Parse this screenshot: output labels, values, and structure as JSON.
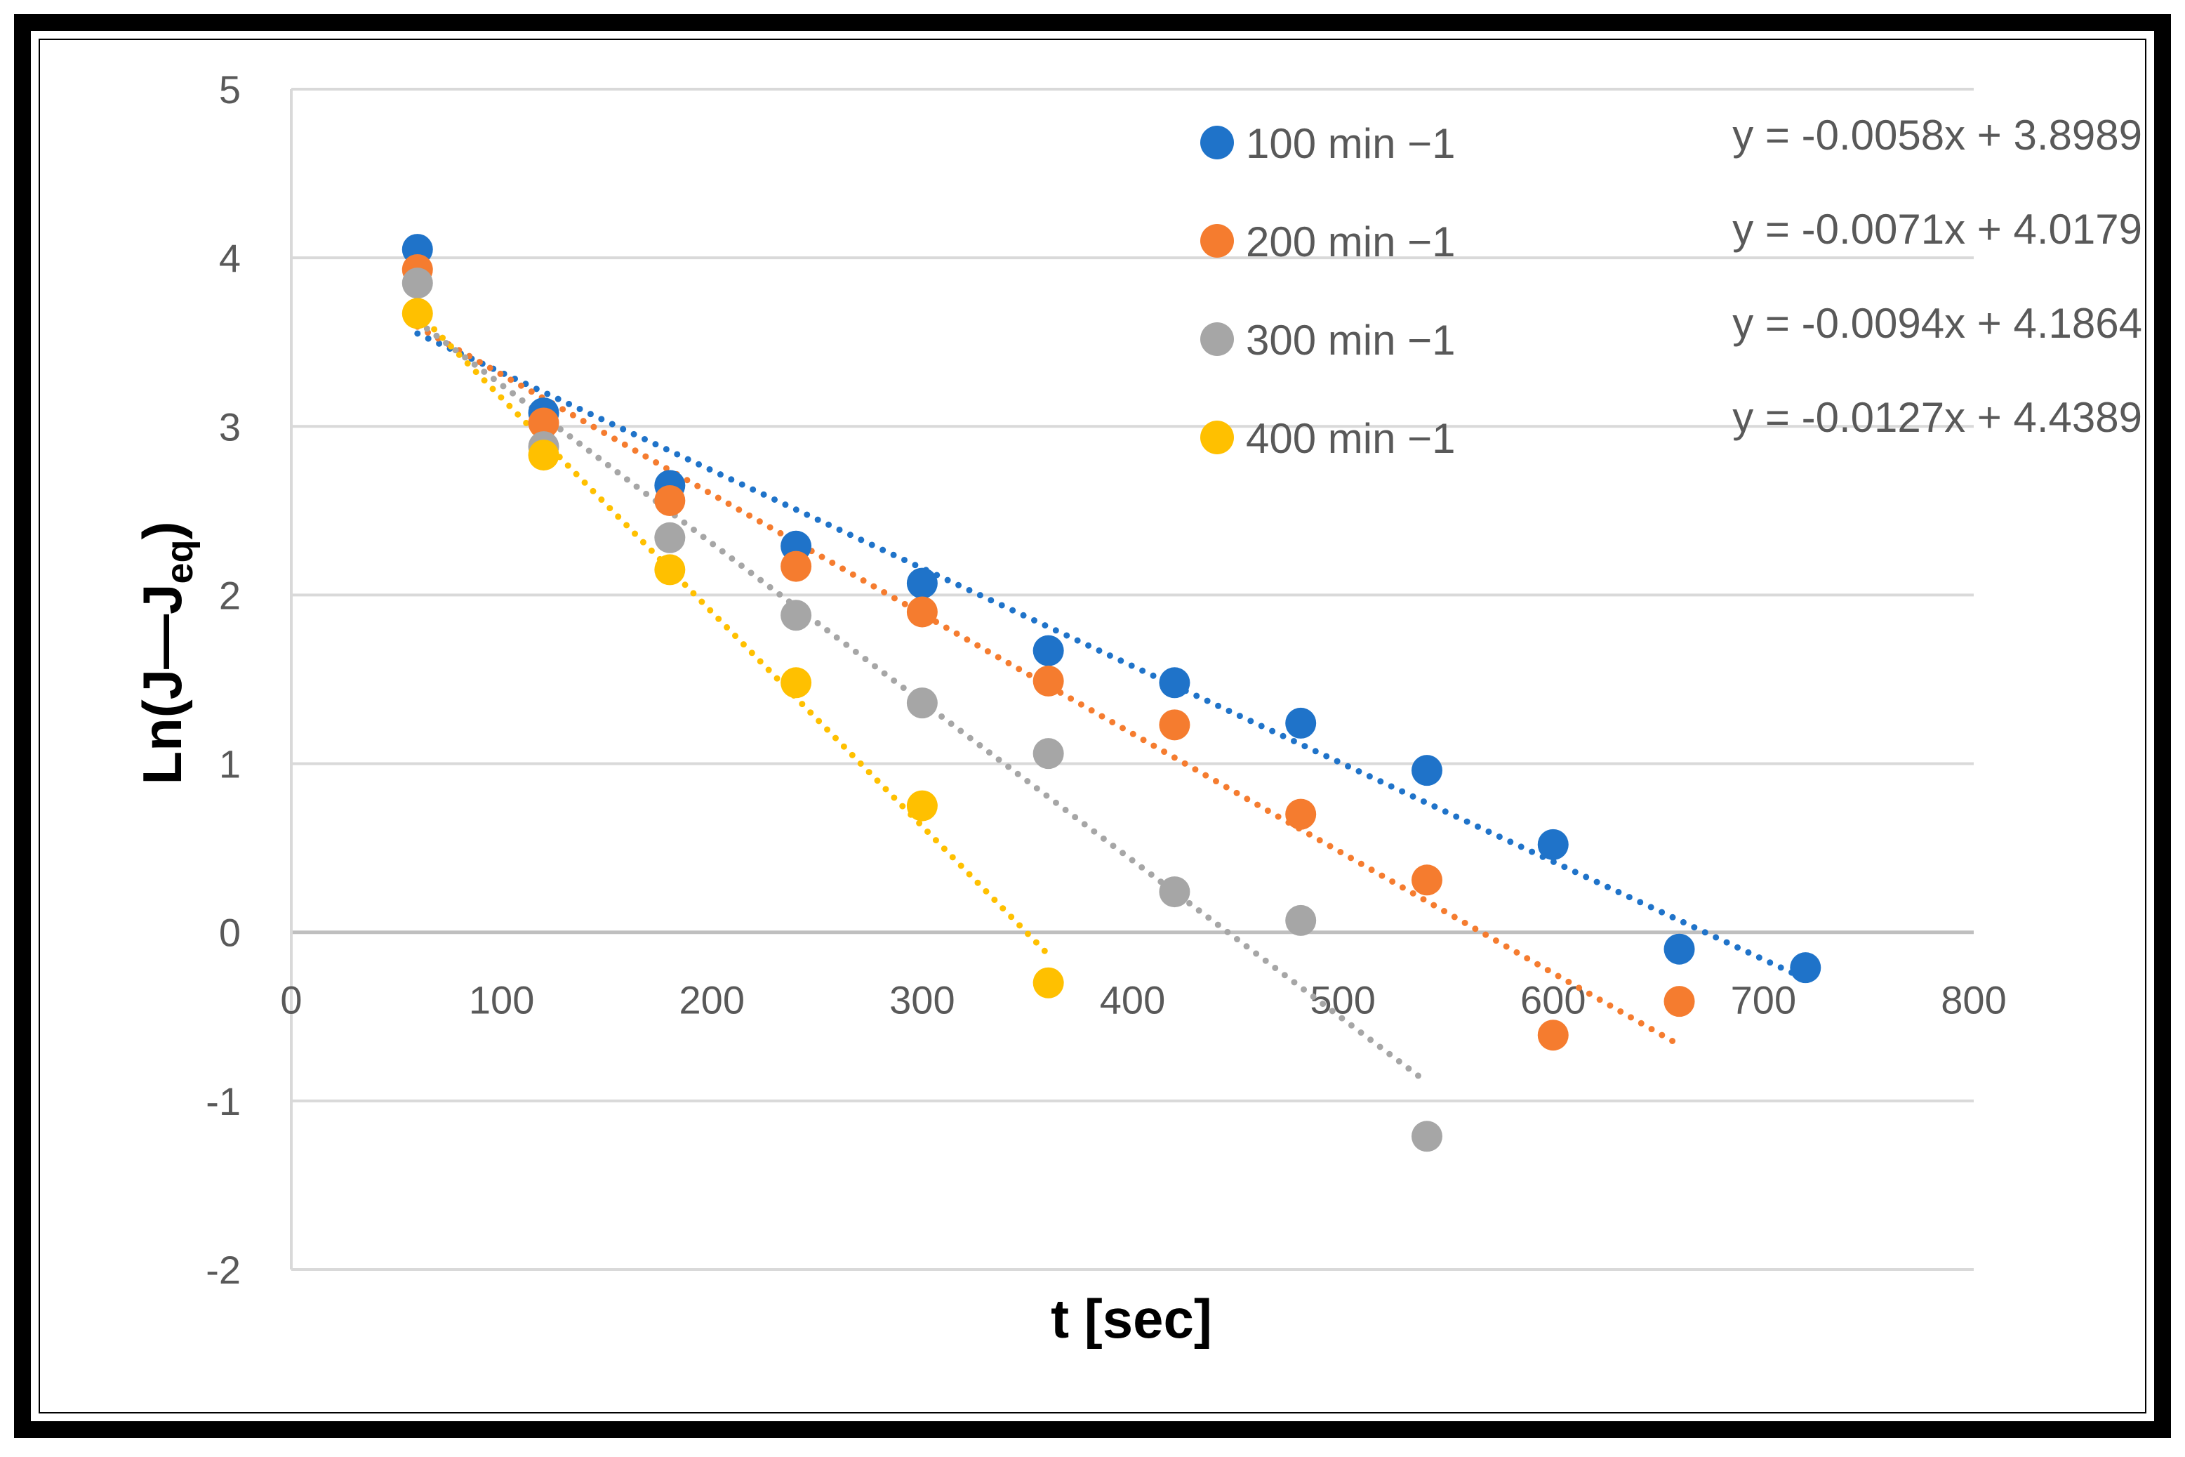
{
  "chart_data": {
    "type": "scatter",
    "title": "",
    "xlabel": "t [sec]",
    "ylabel": {
      "main": "Ln(J—J",
      "sub": "eq",
      "close": ")"
    },
    "xlim": [
      0,
      800
    ],
    "ylim": [
      -2,
      5
    ],
    "x_ticks": [
      0,
      100,
      200,
      300,
      400,
      500,
      600,
      700,
      800
    ],
    "y_ticks": [
      -2,
      -1,
      0,
      1,
      2,
      3,
      4,
      5
    ],
    "grid": "horizontal",
    "legend_position": "top-right",
    "series": [
      {
        "name": "100 min −1",
        "color": "#1f73c9",
        "equation": "y = -0.0058x + 3.8989",
        "trend": {
          "slope": -0.0058,
          "intercept": 3.8989,
          "x_range": [
            60,
            720
          ]
        },
        "points": [
          [
            60,
            4.05
          ],
          [
            120,
            3.08
          ],
          [
            180,
            2.65
          ],
          [
            240,
            2.29
          ],
          [
            300,
            2.07
          ],
          [
            360,
            1.67
          ],
          [
            420,
            1.48
          ],
          [
            480,
            1.24
          ],
          [
            540,
            0.96
          ],
          [
            600,
            0.52
          ],
          [
            660,
            -0.1
          ],
          [
            720,
            -0.21
          ]
        ]
      },
      {
        "name": "200 min −1",
        "color": "#f57c2f",
        "equation": "y = -0.0071x + 4.0179",
        "trend": {
          "slope": -0.0071,
          "intercept": 4.0179,
          "x_range": [
            60,
            660
          ]
        },
        "points": [
          [
            60,
            3.93
          ],
          [
            120,
            3.02
          ],
          [
            180,
            2.56
          ],
          [
            240,
            2.17
          ],
          [
            300,
            1.9
          ],
          [
            360,
            1.49
          ],
          [
            420,
            1.23
          ],
          [
            480,
            0.7
          ],
          [
            540,
            0.31
          ],
          [
            600,
            -0.61
          ],
          [
            660,
            -0.41
          ]
        ]
      },
      {
        "name": "300 min −1",
        "color": "#a6a6a6",
        "equation": "y = -0.0094x + 4.1864",
        "trend": {
          "slope": -0.0094,
          "intercept": 4.1864,
          "x_range": [
            60,
            540
          ]
        },
        "points": [
          [
            60,
            3.85
          ],
          [
            120,
            2.88
          ],
          [
            180,
            2.34
          ],
          [
            240,
            1.88
          ],
          [
            300,
            1.36
          ],
          [
            360,
            1.06
          ],
          [
            420,
            0.24
          ],
          [
            480,
            0.07
          ],
          [
            540,
            -1.21
          ]
        ]
      },
      {
        "name": "400 min −1",
        "color": "#ffc000",
        "equation": "y = -0.0127x + 4.4389",
        "trend": {
          "slope": -0.0127,
          "intercept": 4.4389,
          "x_range": [
            60,
            360
          ]
        },
        "points": [
          [
            60,
            3.67
          ],
          [
            120,
            2.83
          ],
          [
            180,
            2.15
          ],
          [
            240,
            1.48
          ],
          [
            300,
            0.75
          ],
          [
            360,
            -0.3
          ]
        ]
      }
    ]
  }
}
